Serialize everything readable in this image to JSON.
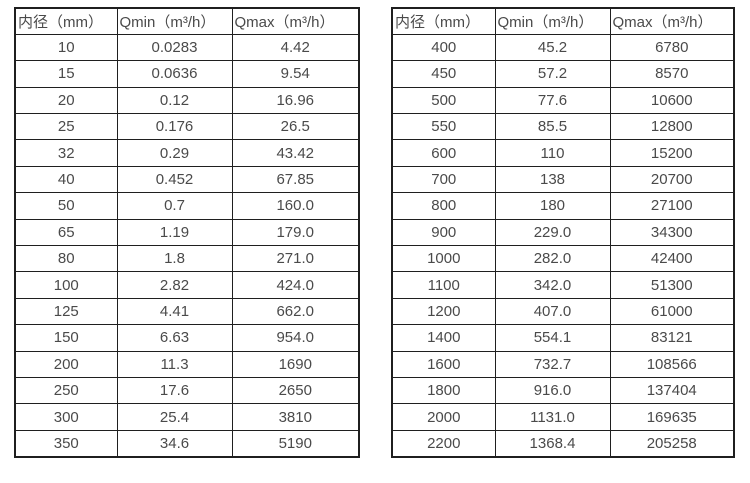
{
  "colors": {
    "border": "#1f1f1f",
    "text": "#4a4a4a",
    "background": "#ffffff"
  },
  "table_left": {
    "headers": [
      "内径（mm）",
      "Qmin（m³/h）",
      "Qmax（m³/h）"
    ],
    "rows": [
      [
        "10",
        "0.0283",
        "4.42"
      ],
      [
        "15",
        "0.0636",
        "9.54"
      ],
      [
        "20",
        "0.12",
        "16.96"
      ],
      [
        "25",
        "0.176",
        "26.5"
      ],
      [
        "32",
        "0.29",
        "43.42"
      ],
      [
        "40",
        "0.452",
        "67.85"
      ],
      [
        "50",
        "0.7",
        "160.0"
      ],
      [
        "65",
        "1.19",
        "179.0"
      ],
      [
        "80",
        "1.8",
        "271.0"
      ],
      [
        "100",
        "2.82",
        "424.0"
      ],
      [
        "125",
        "4.41",
        "662.0"
      ],
      [
        "150",
        "6.63",
        "954.0"
      ],
      [
        "200",
        "11.3",
        "1690"
      ],
      [
        "250",
        "17.6",
        "2650"
      ],
      [
        "300",
        "25.4",
        "3810"
      ],
      [
        "350",
        "34.6",
        "5190"
      ]
    ]
  },
  "table_right": {
    "headers": [
      "内径（mm）",
      "Qmin（m³/h）",
      "Qmax（m³/h）"
    ],
    "rows": [
      [
        "400",
        "45.2",
        "6780"
      ],
      [
        "450",
        "57.2",
        "8570"
      ],
      [
        "500",
        "77.6",
        "10600"
      ],
      [
        "550",
        "85.5",
        "12800"
      ],
      [
        "600",
        "110",
        "15200"
      ],
      [
        "700",
        "138",
        "20700"
      ],
      [
        "800",
        "180",
        "27100"
      ],
      [
        "900",
        "229.0",
        "34300"
      ],
      [
        "1000",
        "282.0",
        "42400"
      ],
      [
        "1100",
        "342.0",
        "51300"
      ],
      [
        "1200",
        "407.0",
        "61000"
      ],
      [
        "1400",
        "554.1",
        "83121"
      ],
      [
        "1600",
        "732.7",
        "108566"
      ],
      [
        "1800",
        "916.0",
        "137404"
      ],
      [
        "2000",
        "1131.0",
        "169635"
      ],
      [
        "2200",
        "1368.4",
        "205258"
      ]
    ]
  }
}
